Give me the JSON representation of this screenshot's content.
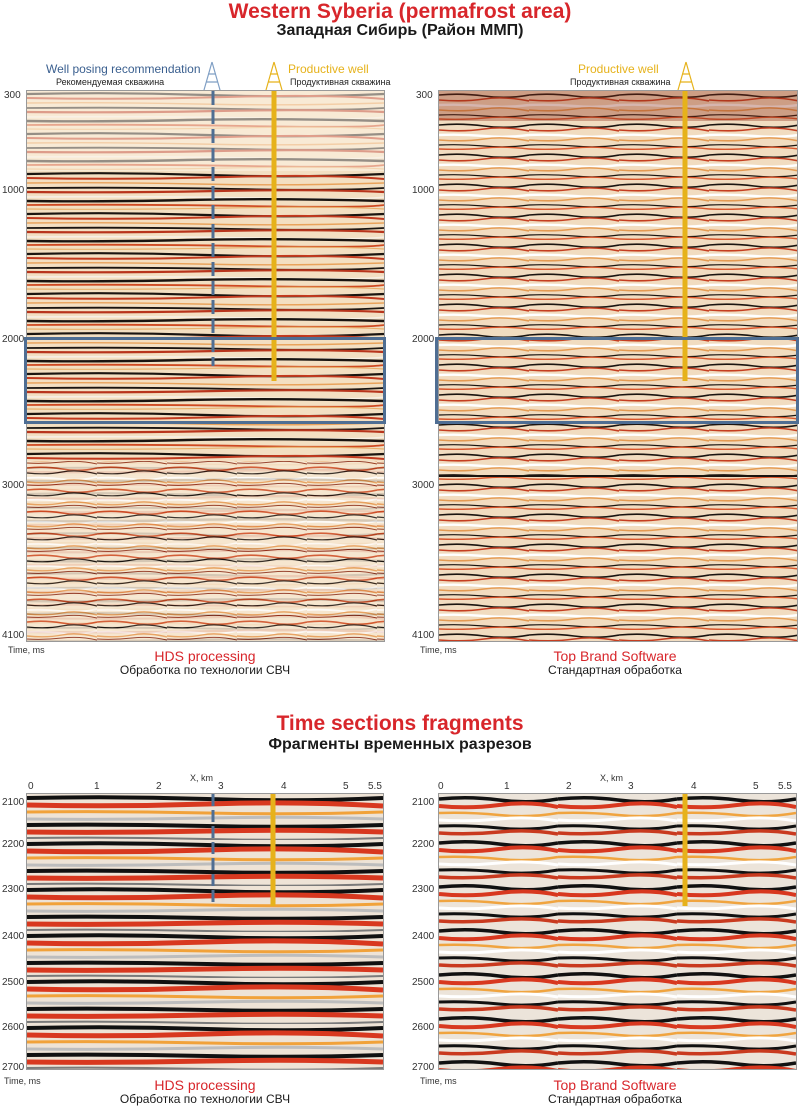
{
  "header": {
    "title": "Western Syberia (permafrost area)",
    "subtitle": "Западная Сибирь (Район ММП)"
  },
  "legend": {
    "recommend_en": "Well posing recommendation",
    "recommend_ru": "Рекомендуемая скважина",
    "productive_en": "Productive well",
    "productive_ru": "Продуктивная скважина"
  },
  "top_sections": {
    "y_ticks": [
      "300",
      "1000",
      "2000",
      "3000",
      "4100"
    ],
    "axis_label": "Time, ms",
    "left_caption_en": "HDS processing",
    "left_caption_ru": "Обработка по технологии СВЧ",
    "right_caption_en": "Top Brand Software",
    "right_caption_ru": "Стандартная обработка"
  },
  "fragments": {
    "title": "Time sections fragments",
    "subtitle": "Фрагменты временных разрезов",
    "x_label": "X, km",
    "x_ticks": [
      "0",
      "1",
      "2",
      "3",
      "4",
      "5",
      "5.5"
    ],
    "y_ticks": [
      "2100",
      "2200",
      "2300",
      "2400",
      "2500",
      "2600",
      "2700"
    ],
    "axis_label": "Time, ms",
    "left_caption_en": "HDS processing",
    "left_caption_ru": "Обработка по технологии СВЧ",
    "right_caption_en": "Top Brand Software",
    "right_caption_ru": "Стандартная обработка"
  },
  "colors": {
    "title_red": "#d8262b",
    "recommend_blue": "#4f6e93",
    "productive_yellow": "#e6b21b"
  }
}
